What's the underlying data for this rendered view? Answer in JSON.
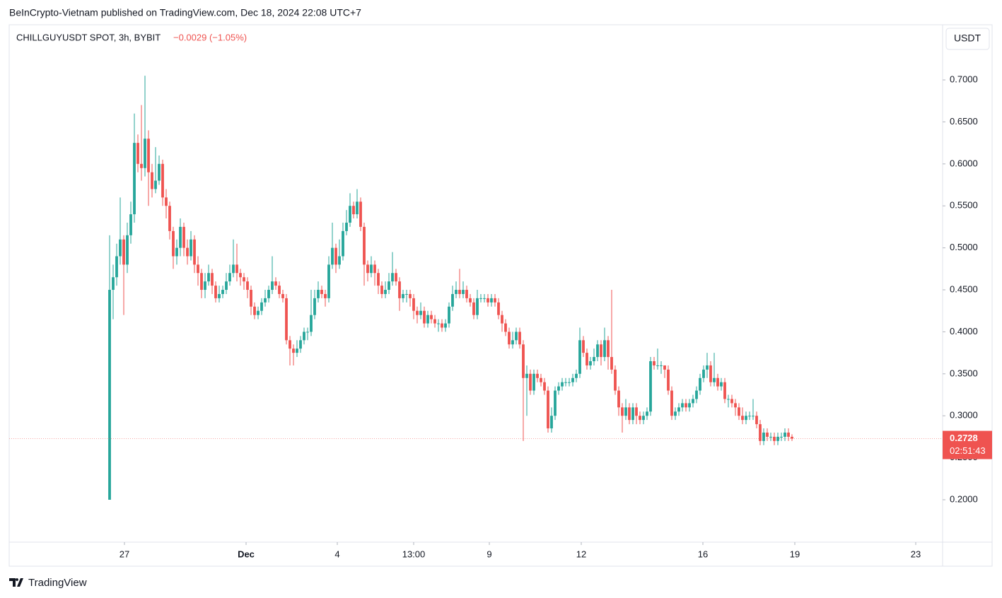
{
  "header": "BeInCrypto-Vietnam published on TradingView.com, Dec 18, 2024 22:08 UTC+7",
  "footer": "TradingView",
  "currency_button": "USDT",
  "chart_data": {
    "type": "candlestick",
    "title": "CHILLGUYUSDT SPOT, 3h, BYBIT",
    "change": "−0.0029 (−1.05%)",
    "last_price": 0.2728,
    "countdown": "02:51:43",
    "up_color": "#26a69a",
    "down_color": "#ef5350",
    "xlim": [
      -28.4,
      235.6
    ],
    "xticks": [
      {
        "value": 4.2,
        "label": "27"
      },
      {
        "value": 38.6,
        "label": "Dec"
      },
      {
        "value": 64.4,
        "label": "4"
      },
      {
        "value": 86,
        "label": "13:00"
      },
      {
        "value": 107.4,
        "label": "9"
      },
      {
        "value": 133.4,
        "label": "12"
      },
      {
        "value": 167.8,
        "label": "16"
      },
      {
        "value": 193.8,
        "label": "19"
      },
      {
        "value": 228,
        "label": "23"
      }
    ],
    "ylim": [
      0.1495,
      0.7657
    ],
    "yticks": [
      {
        "value": 0.2,
        "label": "0.2000"
      },
      {
        "value": 0.25,
        "label": "0.2500"
      },
      {
        "value": 0.3,
        "label": "0.3000"
      },
      {
        "value": 0.35,
        "label": "0.3500"
      },
      {
        "value": 0.4,
        "label": "0.4000"
      },
      {
        "value": 0.45,
        "label": "0.4500"
      },
      {
        "value": 0.5,
        "label": "0.5000"
      },
      {
        "value": 0.55,
        "label": "0.5500"
      },
      {
        "value": 0.6,
        "label": "0.6000"
      },
      {
        "value": 0.65,
        "label": "0.6500"
      },
      {
        "value": 0.7,
        "label": "0.7000"
      }
    ],
    "open": [
      0.2,
      0.45,
      0.465,
      0.49,
      0.51,
      0.48,
      0.515,
      0.54,
      0.625,
      0.6,
      0.595,
      0.63,
      0.59,
      0.57,
      0.58,
      0.6,
      0.56,
      0.55,
      0.52,
      0.49,
      0.5,
      0.525,
      0.5,
      0.49,
      0.51,
      0.48,
      0.47,
      0.45,
      0.46,
      0.47,
      0.455,
      0.44,
      0.445,
      0.45,
      0.46,
      0.47,
      0.48,
      0.47,
      0.465,
      0.46,
      0.45,
      0.43,
      0.42,
      0.425,
      0.435,
      0.44,
      0.45,
      0.46,
      0.455,
      0.445,
      0.44,
      0.39,
      0.38,
      0.375,
      0.38,
      0.39,
      0.4,
      0.4,
      0.42,
      0.44,
      0.45,
      0.445,
      0.44,
      0.48,
      0.5,
      0.48,
      0.49,
      0.52,
      0.53,
      0.55,
      0.54,
      0.555,
      0.525,
      0.48,
      0.47,
      0.48,
      0.47,
      0.455,
      0.445,
      0.45,
      0.46,
      0.47,
      0.46,
      0.44,
      0.445,
      0.445,
      0.44,
      0.425,
      0.42,
      0.425,
      0.41,
      0.42,
      0.415,
      0.41,
      0.41,
      0.405,
      0.41,
      0.43,
      0.445,
      0.45,
      0.445,
      0.45,
      0.44,
      0.435,
      0.42,
      0.44,
      0.44,
      0.44,
      0.435,
      0.44,
      0.435,
      0.42,
      0.41,
      0.4,
      0.385,
      0.39,
      0.4,
      0.385,
      0.345,
      0.35,
      0.33,
      0.35,
      0.345,
      0.34,
      0.33,
      0.285,
      0.3,
      0.33,
      0.335,
      0.34,
      0.34,
      0.34,
      0.345,
      0.35,
      0.39,
      0.375,
      0.36,
      0.365,
      0.37,
      0.385,
      0.37,
      0.39,
      0.37,
      0.355,
      0.33,
      0.31,
      0.3,
      0.31,
      0.295,
      0.31,
      0.3,
      0.295,
      0.3,
      0.305,
      0.365,
      0.36,
      0.36,
      0.36,
      0.355,
      0.33,
      0.3,
      0.305,
      0.31,
      0.315,
      0.31,
      0.315,
      0.32,
      0.33,
      0.345,
      0.355,
      0.36,
      0.34,
      0.345,
      0.335,
      0.34,
      0.32,
      0.32,
      0.315,
      0.31,
      0.3,
      0.295,
      0.3,
      0.3,
      0.3,
      0.29,
      0.27,
      0.28,
      0.275,
      0.275,
      0.27,
      0.275,
      0.275,
      0.28,
      0.275
    ],
    "high": [
      0.515,
      0.48,
      0.505,
      0.56,
      0.515,
      0.53,
      0.555,
      0.66,
      0.635,
      0.67,
      0.705,
      0.64,
      0.6,
      0.62,
      0.61,
      0.605,
      0.57,
      0.555,
      0.525,
      0.51,
      0.535,
      0.53,
      0.51,
      0.52,
      0.515,
      0.49,
      0.475,
      0.47,
      0.48,
      0.475,
      0.46,
      0.455,
      0.455,
      0.47,
      0.48,
      0.51,
      0.505,
      0.475,
      0.47,
      0.465,
      0.455,
      0.435,
      0.43,
      0.44,
      0.45,
      0.455,
      0.49,
      0.465,
      0.46,
      0.45,
      0.445,
      0.395,
      0.385,
      0.39,
      0.395,
      0.405,
      0.405,
      0.45,
      0.45,
      0.46,
      0.455,
      0.45,
      0.49,
      0.53,
      0.505,
      0.51,
      0.53,
      0.545,
      0.565,
      0.555,
      0.57,
      0.56,
      0.53,
      0.485,
      0.49,
      0.485,
      0.475,
      0.46,
      0.46,
      0.47,
      0.495,
      0.475,
      0.465,
      0.45,
      0.45,
      0.45,
      0.445,
      0.43,
      0.435,
      0.43,
      0.425,
      0.425,
      0.42,
      0.415,
      0.415,
      0.415,
      0.435,
      0.455,
      0.46,
      0.475,
      0.46,
      0.455,
      0.445,
      0.44,
      0.45,
      0.445,
      0.445,
      0.445,
      0.445,
      0.445,
      0.44,
      0.425,
      0.415,
      0.405,
      0.4,
      0.405,
      0.405,
      0.39,
      0.36,
      0.355,
      0.355,
      0.355,
      0.35,
      0.345,
      0.335,
      0.31,
      0.335,
      0.34,
      0.345,
      0.345,
      0.345,
      0.35,
      0.355,
      0.405,
      0.395,
      0.38,
      0.37,
      0.38,
      0.39,
      0.39,
      0.405,
      0.395,
      0.45,
      0.36,
      0.335,
      0.315,
      0.32,
      0.315,
      0.315,
      0.315,
      0.305,
      0.305,
      0.31,
      0.37,
      0.37,
      0.38,
      0.365,
      0.36,
      0.36,
      0.335,
      0.31,
      0.315,
      0.32,
      0.32,
      0.32,
      0.325,
      0.335,
      0.35,
      0.36,
      0.375,
      0.365,
      0.375,
      0.35,
      0.345,
      0.345,
      0.325,
      0.325,
      0.32,
      0.315,
      0.31,
      0.305,
      0.305,
      0.32,
      0.305,
      0.295,
      0.285,
      0.285,
      0.28,
      0.28,
      0.28,
      0.28,
      0.285,
      0.285,
      0.278
    ],
    "low": [
      0.2,
      0.415,
      0.455,
      0.48,
      0.42,
      0.47,
      0.505,
      0.53,
      0.59,
      0.58,
      0.585,
      0.55,
      0.56,
      0.565,
      0.575,
      0.55,
      0.535,
      0.51,
      0.475,
      0.48,
      0.49,
      0.49,
      0.48,
      0.485,
      0.47,
      0.455,
      0.44,
      0.44,
      0.455,
      0.445,
      0.435,
      0.435,
      0.44,
      0.445,
      0.455,
      0.465,
      0.46,
      0.455,
      0.45,
      0.44,
      0.42,
      0.415,
      0.415,
      0.42,
      0.43,
      0.435,
      0.445,
      0.45,
      0.44,
      0.435,
      0.385,
      0.36,
      0.36,
      0.37,
      0.375,
      0.385,
      0.39,
      0.395,
      0.415,
      0.435,
      0.44,
      0.43,
      0.435,
      0.475,
      0.47,
      0.475,
      0.485,
      0.515,
      0.525,
      0.535,
      0.535,
      0.52,
      0.455,
      0.46,
      0.465,
      0.455,
      0.445,
      0.44,
      0.44,
      0.445,
      0.455,
      0.455,
      0.425,
      0.435,
      0.435,
      0.43,
      0.415,
      0.41,
      0.415,
      0.405,
      0.405,
      0.41,
      0.405,
      0.4,
      0.4,
      0.4,
      0.405,
      0.425,
      0.44,
      0.44,
      0.44,
      0.435,
      0.43,
      0.415,
      0.415,
      0.435,
      0.435,
      0.43,
      0.43,
      0.43,
      0.415,
      0.4,
      0.395,
      0.38,
      0.38,
      0.385,
      0.38,
      0.27,
      0.3,
      0.325,
      0.325,
      0.34,
      0.335,
      0.325,
      0.28,
      0.28,
      0.295,
      0.325,
      0.33,
      0.335,
      0.335,
      0.335,
      0.34,
      0.345,
      0.37,
      0.355,
      0.355,
      0.36,
      0.365,
      0.36,
      0.365,
      0.355,
      0.35,
      0.325,
      0.3,
      0.28,
      0.295,
      0.29,
      0.29,
      0.29,
      0.29,
      0.29,
      0.295,
      0.3,
      0.355,
      0.355,
      0.35,
      0.345,
      0.325,
      0.295,
      0.295,
      0.3,
      0.305,
      0.305,
      0.305,
      0.31,
      0.315,
      0.325,
      0.34,
      0.345,
      0.335,
      0.335,
      0.33,
      0.33,
      0.315,
      0.31,
      0.31,
      0.3,
      0.295,
      0.29,
      0.29,
      0.295,
      0.295,
      0.285,
      0.265,
      0.265,
      0.27,
      0.27,
      0.265,
      0.265,
      0.27,
      0.27,
      0.27,
      0.27
    ],
    "close": [
      0.45,
      0.465,
      0.49,
      0.51,
      0.48,
      0.515,
      0.54,
      0.625,
      0.6,
      0.595,
      0.63,
      0.59,
      0.57,
      0.58,
      0.6,
      0.56,
      0.55,
      0.52,
      0.49,
      0.5,
      0.525,
      0.5,
      0.49,
      0.51,
      0.48,
      0.47,
      0.45,
      0.46,
      0.47,
      0.455,
      0.44,
      0.445,
      0.45,
      0.46,
      0.47,
      0.48,
      0.47,
      0.465,
      0.46,
      0.45,
      0.43,
      0.42,
      0.425,
      0.435,
      0.44,
      0.45,
      0.46,
      0.455,
      0.445,
      0.44,
      0.39,
      0.38,
      0.375,
      0.38,
      0.39,
      0.4,
      0.4,
      0.42,
      0.44,
      0.45,
      0.445,
      0.44,
      0.48,
      0.5,
      0.48,
      0.49,
      0.52,
      0.53,
      0.55,
      0.54,
      0.555,
      0.525,
      0.48,
      0.47,
      0.48,
      0.47,
      0.455,
      0.445,
      0.45,
      0.46,
      0.47,
      0.46,
      0.44,
      0.445,
      0.445,
      0.44,
      0.425,
      0.42,
      0.425,
      0.41,
      0.42,
      0.415,
      0.41,
      0.41,
      0.405,
      0.41,
      0.43,
      0.445,
      0.45,
      0.445,
      0.45,
      0.44,
      0.435,
      0.42,
      0.44,
      0.44,
      0.44,
      0.435,
      0.44,
      0.435,
      0.42,
      0.41,
      0.4,
      0.385,
      0.39,
      0.4,
      0.385,
      0.345,
      0.35,
      0.33,
      0.35,
      0.345,
      0.34,
      0.33,
      0.285,
      0.3,
      0.33,
      0.335,
      0.34,
      0.34,
      0.34,
      0.345,
      0.35,
      0.39,
      0.375,
      0.36,
      0.365,
      0.37,
      0.385,
      0.37,
      0.39,
      0.37,
      0.355,
      0.33,
      0.31,
      0.3,
      0.31,
      0.295,
      0.31,
      0.3,
      0.295,
      0.3,
      0.305,
      0.365,
      0.36,
      0.36,
      0.36,
      0.355,
      0.33,
      0.3,
      0.305,
      0.31,
      0.315,
      0.31,
      0.315,
      0.32,
      0.33,
      0.345,
      0.355,
      0.36,
      0.34,
      0.345,
      0.335,
      0.34,
      0.32,
      0.32,
      0.315,
      0.31,
      0.3,
      0.295,
      0.3,
      0.3,
      0.3,
      0.29,
      0.27,
      0.28,
      0.275,
      0.275,
      0.27,
      0.275,
      0.275,
      0.28,
      0.275,
      0.2728
    ]
  }
}
